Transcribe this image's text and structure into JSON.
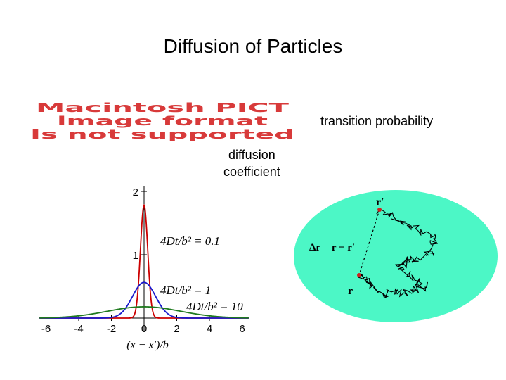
{
  "slide": {
    "title": "Diffusion of Particles",
    "transition_label": "transition probability",
    "diffusion_label": [
      "diffusion",
      "coefficient"
    ]
  },
  "pict_placeholder": {
    "lines": [
      "Macintosh PICT",
      "image format",
      "Is not supported"
    ],
    "color": "#d83a3a"
  },
  "chart_data": {
    "type": "line",
    "x_ticks": [
      "-6",
      "-4",
      "-2",
      "0",
      "2",
      "4",
      "6"
    ],
    "y_ticks": [
      "2",
      "1"
    ],
    "xlabel": "(x − x′)/b",
    "xlim": [
      -6.5,
      6.5
    ],
    "ylim": [
      0,
      2.1
    ],
    "series": [
      {
        "name": "4Dt/b² = 0.1",
        "param": 0.1,
        "color": "#cc0000"
      },
      {
        "name": "4Dt/b² = 1",
        "param": 1,
        "color": "#1a1acc"
      },
      {
        "name": "4Dt/b² = 10",
        "param": 10,
        "color": "#1f7a1f"
      }
    ]
  },
  "random_walk": {
    "start_label": "r′",
    "end_label": "r",
    "displacement_label": "Δr = r − r′",
    "background": "#4cf7c6"
  }
}
